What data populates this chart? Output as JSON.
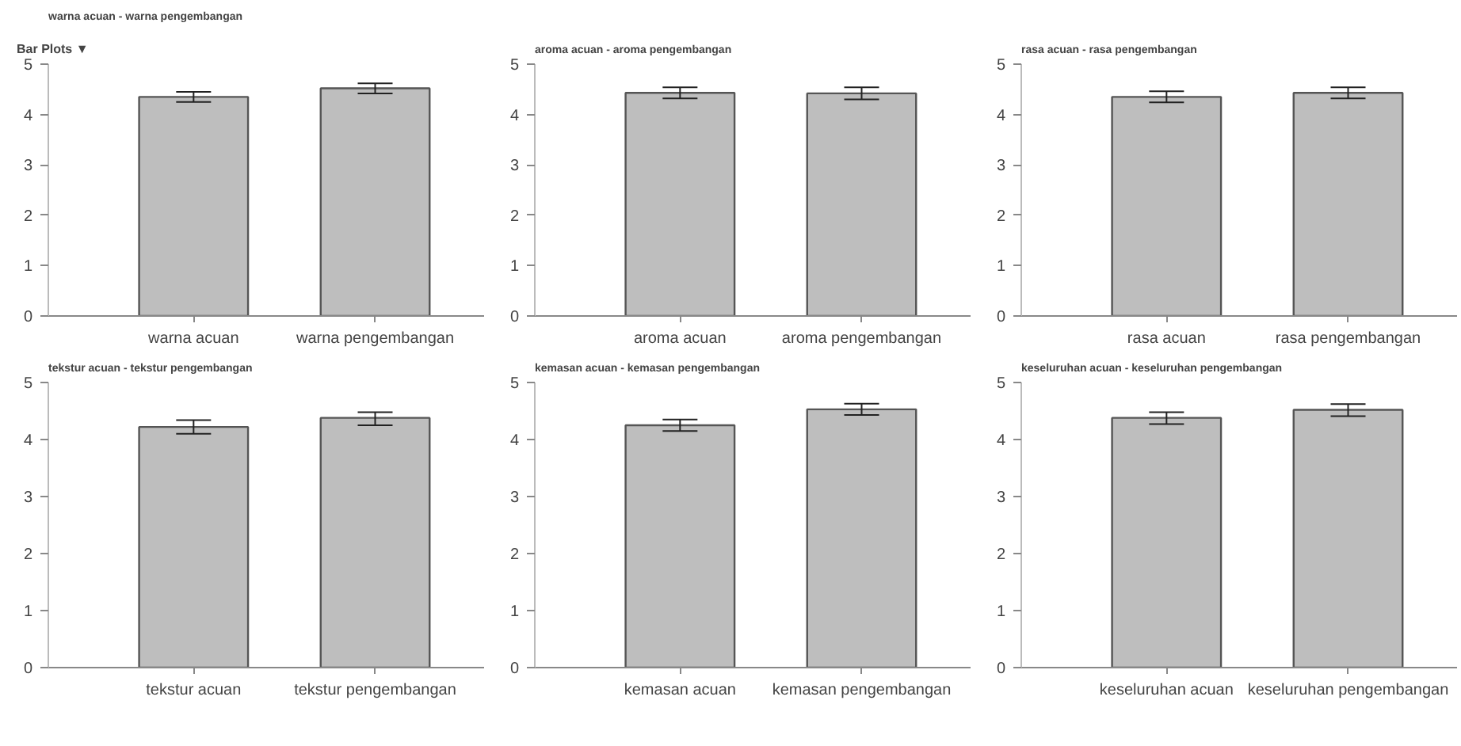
{
  "chart_data": [
    {
      "type": "bar",
      "title": "warna acuan - warna pengembangan",
      "annotations": [
        "Bar Plots ▼"
      ],
      "categories": [
        "warna acuan",
        "warna pengembangan"
      ],
      "values": [
        4.35,
        4.52
      ],
      "errors": [
        [
          4.25,
          4.45
        ],
        [
          4.42,
          4.62
        ]
      ],
      "color": "#bebebe",
      "ylim": [
        0,
        5
      ],
      "yticks": [
        0,
        1,
        2,
        3,
        4,
        5
      ],
      "grid": false
    },
    {
      "type": "bar",
      "title": "aroma acuan - aroma pengembangan",
      "categories": [
        "aroma acuan",
        "aroma pengembangan"
      ],
      "values": [
        4.43,
        4.42
      ],
      "errors": [
        [
          4.32,
          4.54
        ],
        [
          4.3,
          4.54
        ]
      ],
      "color": "#bebebe",
      "ylim": [
        0,
        5
      ],
      "yticks": [
        0,
        1,
        2,
        3,
        4,
        5
      ],
      "grid": false
    },
    {
      "type": "bar",
      "title": "rasa acuan - rasa pengembangan",
      "categories": [
        "rasa acuan",
        "rasa pengembangan"
      ],
      "values": [
        4.35,
        4.43
      ],
      "errors": [
        [
          4.24,
          4.46
        ],
        [
          4.32,
          4.54
        ]
      ],
      "color": "#bebebe",
      "ylim": [
        0,
        5
      ],
      "yticks": [
        0,
        1,
        2,
        3,
        4,
        5
      ],
      "grid": false
    },
    {
      "type": "bar",
      "title": "tekstur acuan - tekstur pengembangan",
      "categories": [
        "tekstur acuan",
        "tekstur pengembangan"
      ],
      "values": [
        4.22,
        4.38
      ],
      "errors": [
        [
          4.1,
          4.34
        ],
        [
          4.25,
          4.48
        ]
      ],
      "color": "#bebebe",
      "ylim": [
        0,
        5
      ],
      "yticks": [
        0,
        1,
        2,
        3,
        4,
        5
      ],
      "grid": false
    },
    {
      "type": "bar",
      "title": "kemasan acuan - kemasan pengembangan",
      "categories": [
        "kemasan acuan",
        "kemasan pengembangan"
      ],
      "values": [
        4.25,
        4.53
      ],
      "errors": [
        [
          4.15,
          4.35
        ],
        [
          4.43,
          4.63
        ]
      ],
      "color": "#bebebe",
      "ylim": [
        0,
        5
      ],
      "yticks": [
        0,
        1,
        2,
        3,
        4,
        5
      ],
      "grid": false
    },
    {
      "type": "bar",
      "title": "keseluruhan acuan - keseluruhan pengembangan",
      "categories": [
        "keseluruhan acuan",
        "keseluruhan pengembangan"
      ],
      "values": [
        4.38,
        4.52
      ],
      "errors": [
        [
          4.27,
          4.48
        ],
        [
          4.41,
          4.62
        ]
      ],
      "color": "#bebebe",
      "ylim": [
        0,
        5
      ],
      "yticks": [
        0,
        1,
        2,
        3,
        4,
        5
      ],
      "grid": false
    }
  ]
}
